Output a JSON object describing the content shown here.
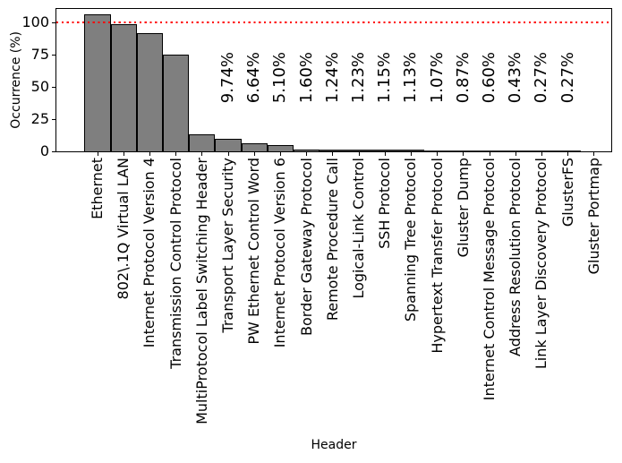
{
  "chart_data": {
    "type": "bar",
    "title": "",
    "xlabel": "Header",
    "ylabel": "Occurrence (%)",
    "ylim": [
      0,
      110.7
    ],
    "yticks": [
      0,
      25,
      50,
      75,
      100
    ],
    "grid": false,
    "legend": "none",
    "bar_fill_color": "#7f7f7f",
    "bar_edge_color": "#000000",
    "reference_line": {
      "y": 100,
      "color": "#ff0000",
      "style": "dotted"
    },
    "categories": [
      "Ethernet",
      "802\\.1Q Virtual LAN",
      "Internet Protocol Version 4",
      "Transmission Control Protocol",
      "MultiProtocol Label Switching Header",
      "Transport Layer Security",
      "PW Ethernet Control Word",
      "Internet Protocol Version 6",
      "Border Gateway Protocol",
      "Remote Procedure Call",
      "Logical-Link Control",
      "SSH Protocol",
      "Spanning Tree Protocol",
      "Hypertext Transfer Protocol",
      "Gluster Dump",
      "Internet Control Message Protocol",
      "Address Resolution Protocol",
      "Link Layer Discovery Protocol",
      "GlusterFS",
      "Gluster Portmap"
    ],
    "values": [
      106.3,
      99.0,
      92.0,
      75.2,
      13.4,
      9.74,
      6.64,
      5.1,
      1.6,
      1.24,
      1.23,
      1.15,
      1.13,
      1.07,
      0.87,
      0.6,
      0.43,
      0.27,
      0.27,
      0
    ],
    "bar_labels": [
      null,
      null,
      null,
      null,
      null,
      "9.74%",
      "6.64%",
      "5.10%",
      "1.60%",
      "1.24%",
      "1.23%",
      "1.15%",
      "1.13%",
      "1.07%",
      "0.87%",
      "0.60%",
      "0.43%",
      "0.27%",
      "0.27%",
      null
    ]
  }
}
